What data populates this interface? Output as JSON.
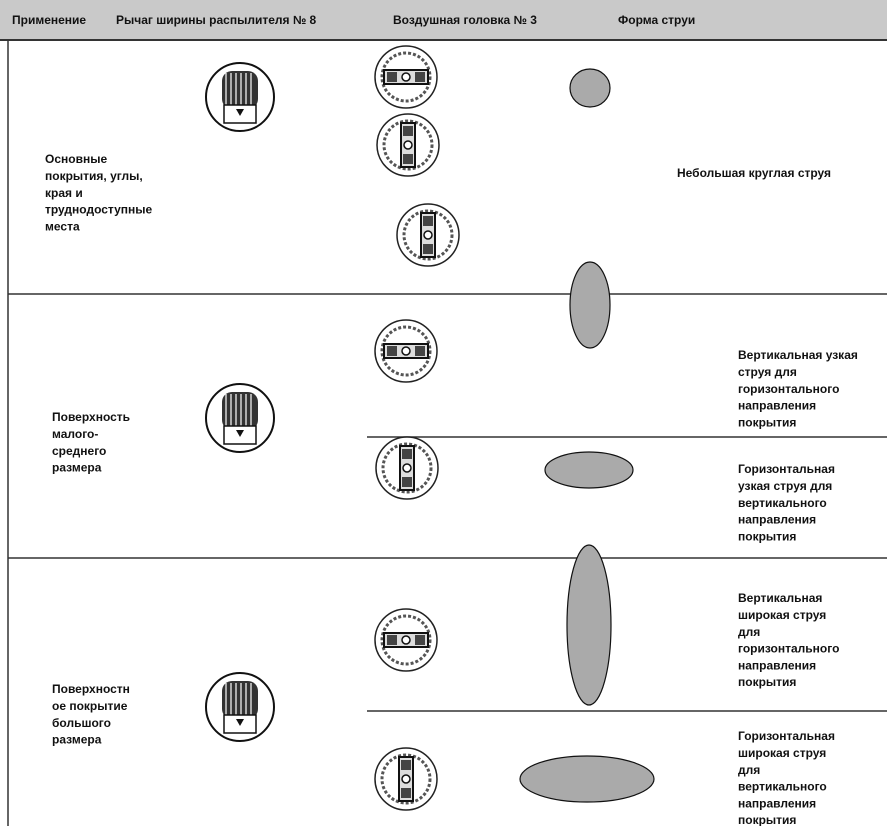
{
  "header": {
    "columns": [
      "Применение",
      "Рычаг ширины распылителя № 8",
      "Воздушная головка № 3",
      "Форма струи"
    ]
  },
  "rows": [
    {
      "application": [
        "Основные",
        "покрытия, углы,",
        "края и",
        "труднодоступные",
        "места"
      ],
      "patterns": [
        {
          "description": [
            "Небольшая круглая струя"
          ]
        }
      ]
    },
    {
      "application": [
        "Поверхность",
        "малого-",
        "среднего",
        "размера"
      ],
      "patterns": [
        {
          "description": [
            "Вертикальная узкая",
            "струя для",
            "горизонтального",
            "направления",
            "покрытия"
          ]
        },
        {
          "description": [
            "Горизонтальная",
            "узкая струя для",
            "вертикального",
            "направления",
            "покрытия"
          ]
        }
      ]
    },
    {
      "application": [
        "Поверхностн",
        "ое покрытие",
        "большого",
        "размера"
      ],
      "patterns": [
        {
          "description": [
            "Вертикальная",
            "широкая струя",
            "для",
            "горизонтального",
            "направления",
            "покрытия"
          ]
        },
        {
          "description": [
            "Горизонтальная",
            "широкая струя",
            "для",
            "вертикального",
            "направления",
            "покрытия"
          ]
        }
      ]
    }
  ]
}
